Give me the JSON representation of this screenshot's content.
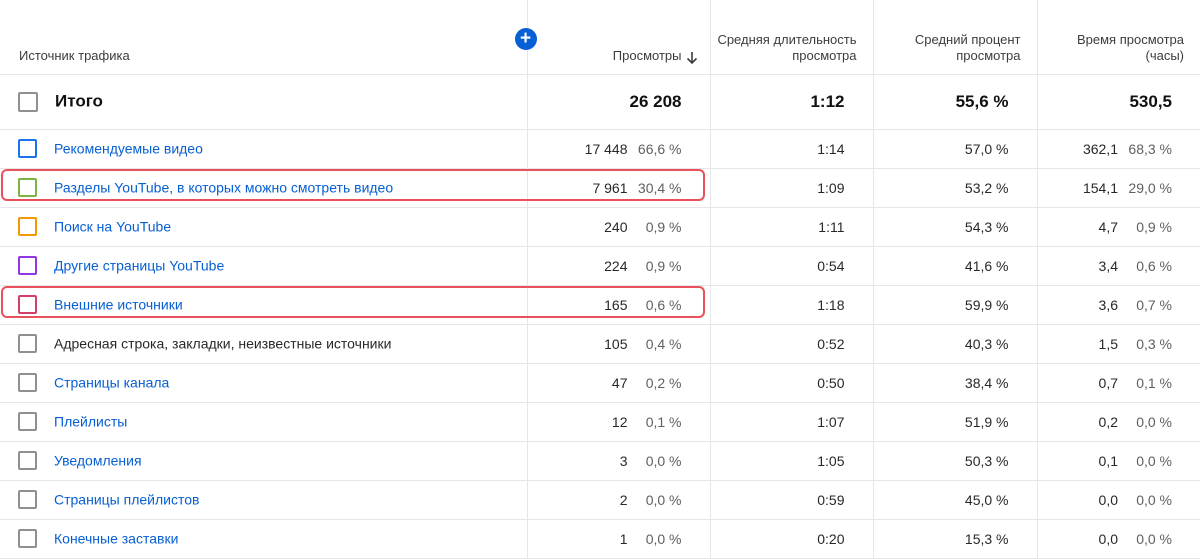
{
  "header": {
    "source": "Источник трафика",
    "views": "Просмотры",
    "avg_duration": "Средняя длительность просмотра",
    "avg_percent": "Средний процент просмотра",
    "watch_time": "Время просмотра (часы)",
    "add_icon": "plus-circle",
    "sort_icon": "arrow-down"
  },
  "total": {
    "label": "Итого",
    "views": "26 208",
    "avg_duration": "1:12",
    "avg_percent": "55,6 %",
    "watch_time": "530,5"
  },
  "rows": [
    {
      "label": "Рекомендуемые видео",
      "color": "#1a73e8",
      "views": "17 448",
      "views_pct": "66,6 %",
      "duration": "1:14",
      "percent": "57,0 %",
      "time": "362,1",
      "time_pct": "68,3 %"
    },
    {
      "label": "Разделы YouTube, в которых можно смотреть видео",
      "color": "#7cb342",
      "views": "7 961",
      "views_pct": "30,4 %",
      "duration": "1:09",
      "percent": "53,2 %",
      "time": "154,1",
      "time_pct": "29,0 %"
    },
    {
      "label": "Поиск на YouTube",
      "color": "#f29900",
      "views": "240",
      "views_pct": "0,9 %",
      "duration": "1:11",
      "percent": "54,3 %",
      "time": "4,7",
      "time_pct": "0,9 %"
    },
    {
      "label": "Другие страницы YouTube",
      "color": "#9334e6",
      "views": "224",
      "views_pct": "0,9 %",
      "duration": "0:54",
      "percent": "41,6 %",
      "time": "3,4",
      "time_pct": "0,6 %"
    },
    {
      "label": "Внешние источники",
      "color": "#d23f67",
      "views": "165",
      "views_pct": "0,6 %",
      "duration": "1:18",
      "percent": "59,9 %",
      "time": "3,6",
      "time_pct": "0,7 %"
    },
    {
      "label": "Адресная строка, закладки, неизвестные источники",
      "color": "#909090",
      "views": "105",
      "views_pct": "0,4 %",
      "duration": "0:52",
      "percent": "40,3 %",
      "time": "1,5",
      "time_pct": "0,3 %"
    },
    {
      "label": "Страницы канала",
      "color": "#909090",
      "views": "47",
      "views_pct": "0,2 %",
      "duration": "0:50",
      "percent": "38,4 %",
      "time": "0,7",
      "time_pct": "0,1 %"
    },
    {
      "label": "Плейлисты",
      "color": "#909090",
      "views": "12",
      "views_pct": "0,1 %",
      "duration": "1:07",
      "percent": "51,9 %",
      "time": "0,2",
      "time_pct": "0,0 %"
    },
    {
      "label": "Уведомления",
      "color": "#909090",
      "views": "3",
      "views_pct": "0,0 %",
      "duration": "1:05",
      "percent": "50,3 %",
      "time": "0,1",
      "time_pct": "0,0 %"
    },
    {
      "label": "Страницы плейлистов",
      "color": "#909090",
      "views": "2",
      "views_pct": "0,0 %",
      "duration": "0:59",
      "percent": "45,0 %",
      "time": "0,0",
      "time_pct": "0,0 %"
    },
    {
      "label": "Конечные заставки",
      "color": "#909090",
      "views": "1",
      "views_pct": "0,0 %",
      "duration": "0:20",
      "percent": "15,3 %",
      "time": "0,0",
      "time_pct": "0,0 %"
    }
  ],
  "highlight_color": "#e8515b"
}
